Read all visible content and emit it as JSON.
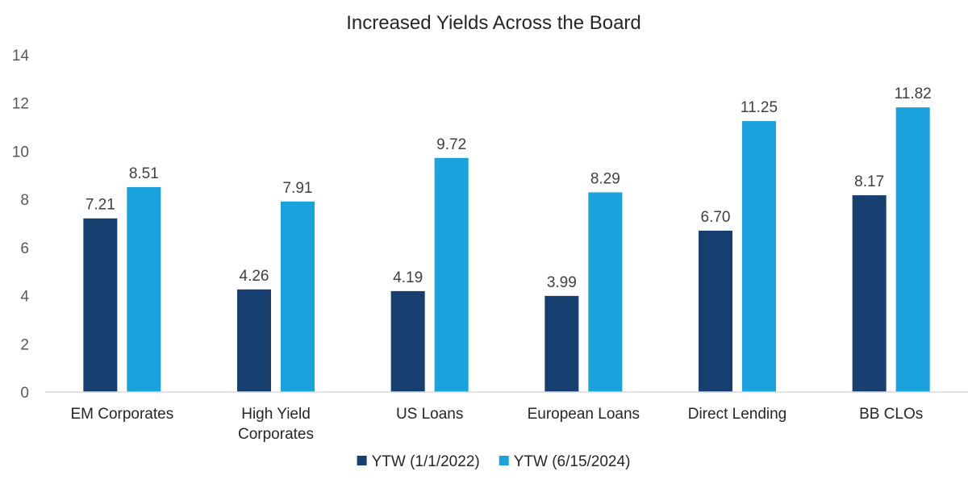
{
  "chart_data": {
    "type": "bar",
    "title": "Increased Yields Across the Board",
    "categories": [
      [
        "EM Corporates"
      ],
      [
        "High Yield",
        "Corporates"
      ],
      [
        "US Loans"
      ],
      [
        "European Loans"
      ],
      [
        "Direct Lending"
      ],
      [
        "BB CLOs"
      ]
    ],
    "series": [
      {
        "name": "YTW (1/1/2022)",
        "color": "#173f6f",
        "values": [
          7.21,
          4.26,
          4.19,
          3.99,
          6.7,
          8.17
        ],
        "labels": [
          "7.21",
          "4.26",
          "4.19",
          "3.99",
          "6.70",
          "8.17"
        ]
      },
      {
        "name": "YTW (6/15/2024)",
        "color": "#19a2dc",
        "values": [
          8.51,
          7.91,
          9.72,
          8.29,
          11.25,
          11.82
        ],
        "labels": [
          "8.51",
          "7.91",
          "9.72",
          "8.29",
          "11.25",
          "11.82"
        ]
      }
    ],
    "ylim": [
      0,
      14
    ],
    "yticks": [
      "0",
      "2",
      "4",
      "6",
      "8",
      "10",
      "12",
      "14"
    ],
    "grid": false,
    "legend": "bottom",
    "xlabel": "",
    "ylabel": ""
  }
}
